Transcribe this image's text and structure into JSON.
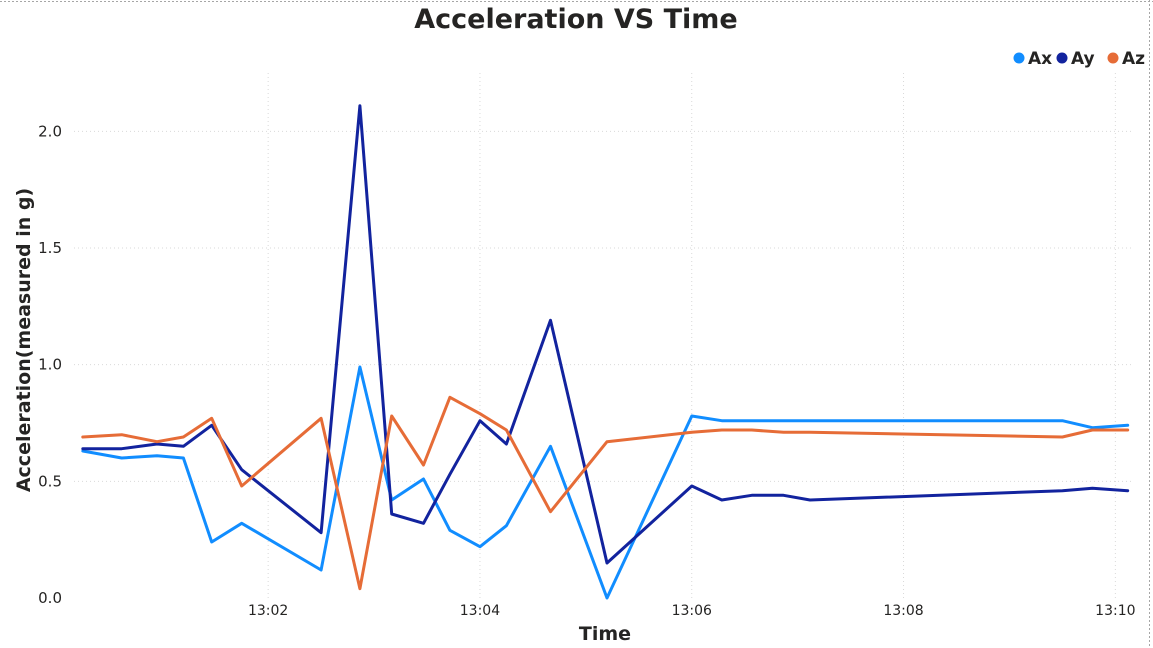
{
  "chart_data": {
    "type": "line",
    "title": "Acceleration VS Time",
    "xlabel": "Time",
    "ylabel": "Acceleration(measured in g)",
    "ylim": [
      0,
      2.25
    ],
    "xlim": [
      "13:00:10",
      "13:10:10"
    ],
    "yticks": [
      "0.0",
      "0.5",
      "1.0",
      "1.5",
      "2.0"
    ],
    "xticks": [
      "13:02",
      "13:04",
      "13:06",
      "13:08",
      "13:10"
    ],
    "grid": true,
    "legend_position": "top-right",
    "x": [
      "13:00:15",
      "13:00:37",
      "13:00:57",
      "13:01:12",
      "13:01:28",
      "13:01:45",
      "13:02:30",
      "13:02:52",
      "13:03:10",
      "13:03:28",
      "13:03:43",
      "13:04:00",
      "13:04:15",
      "13:04:40",
      "13:05:12",
      "13:06:00",
      "13:06:17",
      "13:06:34",
      "13:06:52",
      "13:07:07",
      "13:09:30",
      "13:09:47",
      "13:10:07"
    ],
    "series": [
      {
        "name": "Ax",
        "color": "#118dff",
        "values": [
          0.63,
          0.6,
          0.61,
          0.6,
          0.24,
          0.32,
          0.12,
          0.99,
          0.42,
          0.51,
          0.29,
          0.22,
          0.31,
          0.65,
          0.0,
          0.78,
          0.76,
          0.76,
          0.76,
          0.76,
          0.76,
          0.73,
          0.74
        ]
      },
      {
        "name": "Ay",
        "color": "#12239e",
        "values": [
          0.64,
          0.64,
          0.66,
          0.65,
          0.74,
          0.55,
          0.28,
          2.11,
          0.36,
          0.32,
          0.53,
          0.76,
          0.66,
          1.19,
          0.15,
          0.48,
          0.42,
          0.44,
          0.44,
          0.42,
          0.46,
          0.47,
          0.46
        ]
      },
      {
        "name": "Az",
        "color": "#e66c37",
        "values": [
          0.69,
          0.7,
          0.67,
          0.69,
          0.77,
          0.48,
          0.77,
          0.04,
          0.78,
          0.57,
          0.86,
          0.79,
          0.72,
          0.37,
          0.67,
          0.71,
          0.72,
          0.72,
          0.71,
          0.71,
          0.69,
          0.72,
          0.72
        ]
      }
    ]
  }
}
